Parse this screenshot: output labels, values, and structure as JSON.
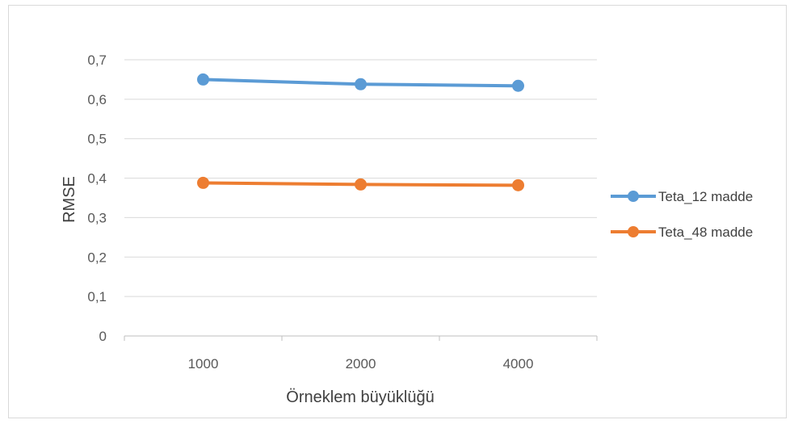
{
  "chart_data": {
    "type": "line",
    "categories": [
      "1000",
      "2000",
      "4000"
    ],
    "series": [
      {
        "name": "Teta_12 madde",
        "values": [
          0.65,
          0.638,
          0.634
        ],
        "color": "#5B9BD5"
      },
      {
        "name": "Teta_48 madde",
        "values": [
          0.388,
          0.384,
          0.382
        ],
        "color": "#ED7D31"
      }
    ],
    "title": "",
    "xlabel": "Örneklem büyüklüğü",
    "ylabel": "RMSE",
    "ylim": [
      0,
      0.7
    ],
    "yticks": [
      "0",
      "0,1",
      "0,2",
      "0,3",
      "0,4",
      "0,5",
      "0,6",
      "0,7"
    ],
    "grid": true,
    "legend_position": "right",
    "gridline_color": "#d9d9d9",
    "axis_color": "#bfbfbf"
  }
}
